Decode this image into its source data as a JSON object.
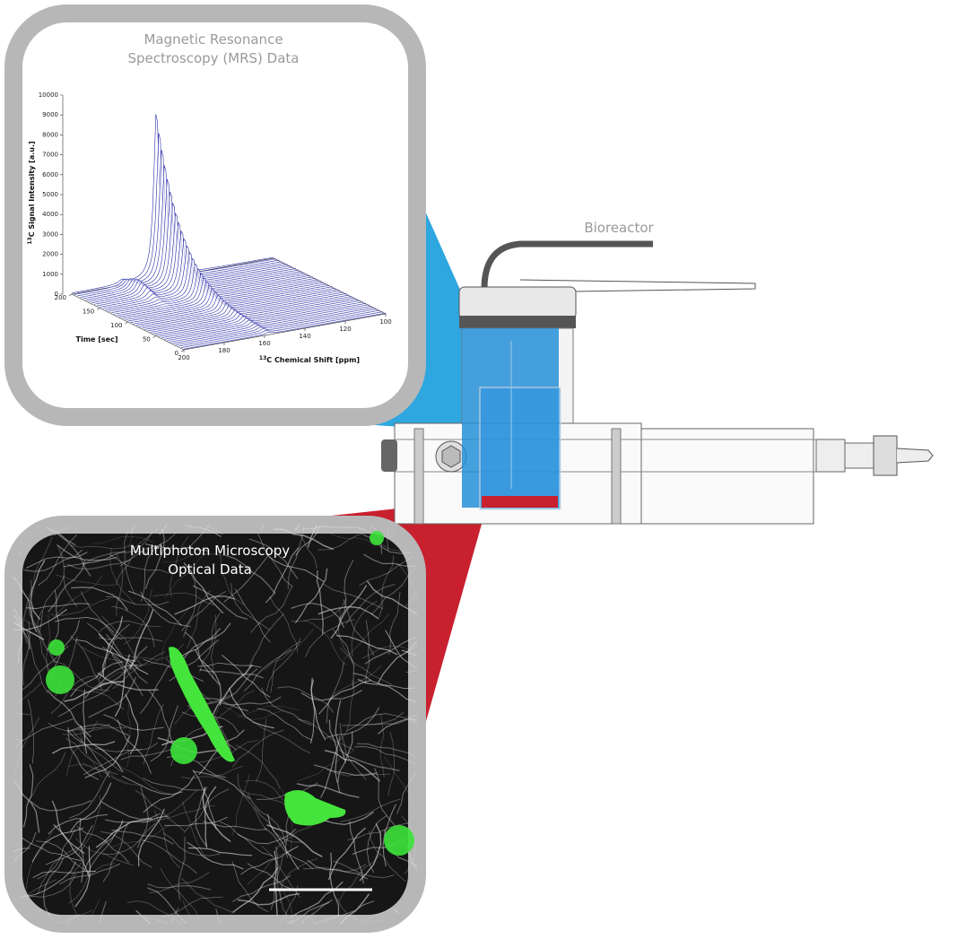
{
  "mrs_inset": {
    "title_lines": [
      "Magnetic Resonance",
      "Spectroscopy (MRS) Data"
    ],
    "plot": {
      "z_axis": {
        "label_sup": "13",
        "label": "C Signal Intensity [a.u.]",
        "ticks": [
          0,
          1000,
          2000,
          3000,
          4000,
          5000,
          6000,
          7000,
          8000,
          9000,
          10000
        ]
      },
      "time_axis": {
        "label": "Time [sec]",
        "ticks": [
          0,
          50,
          100,
          150,
          200
        ]
      },
      "shift_axis": {
        "label_sup": "13",
        "label": "C Chemical Shift [ppm]",
        "ticks": [
          200,
          180,
          160,
          140,
          120,
          100
        ]
      }
    }
  },
  "device": {
    "label": "Bioreactor"
  },
  "microscopy_inset": {
    "title_lines": [
      "Multiphoton Microscopy",
      "Optical Data"
    ]
  }
}
